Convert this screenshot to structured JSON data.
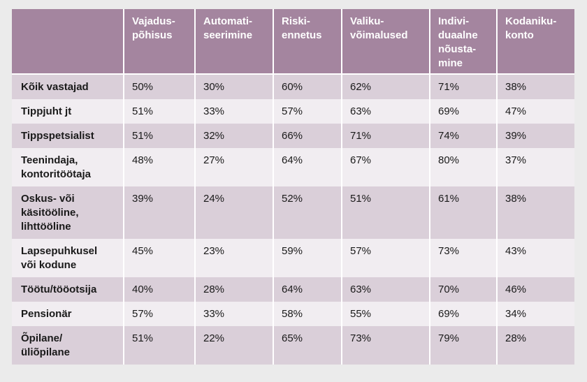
{
  "colors": {
    "header_bg": "#a4859f",
    "row_dark": "#dacfd9",
    "row_light": "#f1edf1",
    "page_bg": "#ebebeb"
  },
  "chart_data": {
    "type": "table",
    "columns": [
      "",
      "Vajadus-\npõhisus",
      "Automati-\nseerimine",
      "Riski-\nennetus",
      "Valiku-\nvõimalused",
      "Indivi-\nduaalne\nnõusta-\nmine",
      "Kodaniku-\nkonto"
    ],
    "rows": [
      {
        "label": "Kõik vastajad",
        "values": [
          "50%",
          "30%",
          "60%",
          "62%",
          "71%",
          "38%"
        ]
      },
      {
        "label": "Tippjuht jt",
        "values": [
          "51%",
          "33%",
          "57%",
          "63%",
          "69%",
          "47%"
        ]
      },
      {
        "label": "Tippspetsialist",
        "values": [
          "51%",
          "32%",
          "66%",
          "71%",
          "74%",
          "39%"
        ]
      },
      {
        "label": "Teenindaja,\nkontoritöötaja",
        "values": [
          "48%",
          "27%",
          "64%",
          "67%",
          "80%",
          "37%"
        ]
      },
      {
        "label": "Oskus- või\nkäsitööline,\nlihttööline",
        "values": [
          "39%",
          "24%",
          "52%",
          "51%",
          "61%",
          "38%"
        ]
      },
      {
        "label": "Lapsepuhkusel\nvõi kodune",
        "values": [
          "45%",
          "23%",
          "59%",
          "57%",
          "73%",
          "43%"
        ]
      },
      {
        "label": "Töötu/tööotsija",
        "values": [
          "40%",
          "28%",
          "64%",
          "63%",
          "70%",
          "46%"
        ]
      },
      {
        "label": "Pensionär",
        "values": [
          "57%",
          "33%",
          "58%",
          "55%",
          "69%",
          "34%"
        ]
      },
      {
        "label": "Õpilane/\nüliõpilane",
        "values": [
          "51%",
          "22%",
          "65%",
          "73%",
          "79%",
          "28%"
        ]
      }
    ]
  }
}
